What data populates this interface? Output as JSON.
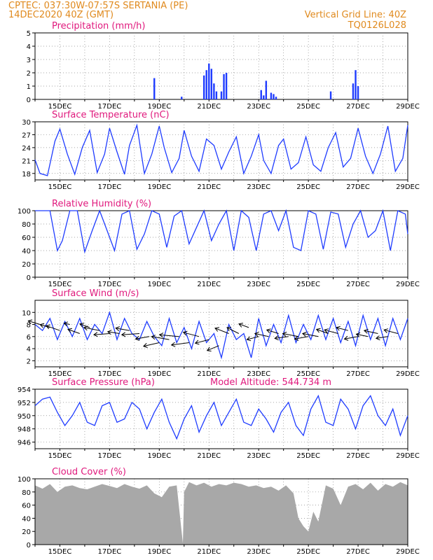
{
  "header": {
    "left_line1": "CPTEC:   037:30W-07:57S   SERTANIA (PE)",
    "left_line2": "14DEC2020 40Z (GMT)",
    "right_line1": "Vertical Grid Line: 40Z",
    "right_line2": "TQ0126L028"
  },
  "colors": {
    "header": "#e08a1e",
    "title": "#e0197d",
    "series": "#1f3cff",
    "cloud": "#a8a8a8",
    "grid": "#888888"
  },
  "x_tick_labels": [
    "15DEC",
    "17DEC",
    "19DEC",
    "21DEC",
    "23DEC",
    "25DEC",
    "27DEC",
    "29DEC"
  ],
  "chart_data": [
    {
      "type": "bar",
      "title": "Precipitation (mm/h)",
      "ylim": [
        0,
        5
      ],
      "yticks": [
        "0",
        "1",
        "2",
        "3",
        "4",
        "5"
      ],
      "x": [
        18.8,
        19.9,
        20.8,
        20.9,
        21.0,
        21.1,
        21.2,
        21.3,
        21.5,
        21.6,
        21.7,
        23.1,
        23.2,
        23.3,
        23.5,
        23.6,
        23.7,
        25.9,
        26.8,
        26.9,
        27.0
      ],
      "values": [
        1.6,
        0.2,
        1.8,
        2.2,
        2.7,
        2.3,
        1.2,
        0.6,
        0.6,
        1.9,
        2.0,
        0.7,
        0.3,
        1.4,
        0.5,
        0.4,
        0.2,
        0.6,
        1.2,
        2.2,
        1.0
      ]
    },
    {
      "type": "line",
      "title": "Surface Temperature (nC)",
      "ylim": [
        16.5,
        30
      ],
      "yticks": [
        "18",
        "21",
        "24",
        "27",
        "30"
      ],
      "x": [
        14.0,
        14.2,
        14.5,
        14.8,
        15.0,
        15.3,
        15.6,
        15.9,
        16.2,
        16.5,
        16.8,
        17.0,
        17.3,
        17.6,
        17.8,
        18.1,
        18.4,
        18.7,
        19.0,
        19.2,
        19.5,
        19.8,
        20.0,
        20.3,
        20.6,
        20.9,
        21.2,
        21.5,
        21.8,
        22.1,
        22.4,
        22.7,
        23.0,
        23.2,
        23.5,
        23.8,
        24.0,
        24.3,
        24.6,
        24.9,
        25.2,
        25.5,
        25.8,
        26.1,
        26.4,
        26.7,
        27.0,
        27.3,
        27.6,
        27.9,
        28.2,
        28.5,
        28.8,
        29.0
      ],
      "values": [
        21.2,
        18.0,
        17.5,
        25.5,
        28.3,
        22.5,
        17.8,
        24.0,
        28.0,
        18.2,
        22.5,
        28.5,
        23.0,
        17.8,
        24.5,
        29.2,
        18.0,
        22.5,
        29.0,
        24.0,
        18.2,
        21.5,
        28.0,
        22.0,
        18.5,
        26.0,
        24.5,
        19.0,
        23.0,
        26.5,
        18.0,
        22.0,
        27.0,
        21.0,
        18.0,
        24.5,
        26.0,
        19.0,
        20.5,
        26.5,
        20.0,
        18.5,
        24.0,
        27.5,
        19.5,
        21.5,
        28.5,
        22.0,
        18.0,
        22.5,
        29.0,
        18.5,
        21.5,
        29.2
      ]
    },
    {
      "type": "line",
      "title": "Relative Humidity (%)",
      "ylim": [
        0,
        100
      ],
      "yticks": [
        "0",
        "20",
        "40",
        "60",
        "80",
        "100"
      ],
      "x": [
        14.0,
        14.3,
        14.6,
        14.9,
        15.1,
        15.4,
        15.7,
        16.0,
        16.3,
        16.6,
        16.9,
        17.2,
        17.5,
        17.8,
        18.1,
        18.4,
        18.7,
        19.0,
        19.3,
        19.6,
        19.9,
        20.2,
        20.5,
        20.8,
        21.1,
        21.4,
        21.7,
        22.0,
        22.3,
        22.6,
        22.9,
        23.2,
        23.5,
        23.8,
        24.1,
        24.4,
        24.7,
        25.0,
        25.3,
        25.6,
        25.9,
        26.2,
        26.5,
        26.8,
        27.1,
        27.4,
        27.7,
        28.0,
        28.3,
        28.6,
        28.9,
        29.0
      ],
      "values": [
        100,
        100,
        100,
        40,
        55,
        100,
        100,
        38,
        70,
        100,
        70,
        40,
        95,
        100,
        42,
        65,
        100,
        95,
        45,
        92,
        100,
        50,
        75,
        100,
        55,
        80,
        100,
        40,
        100,
        90,
        40,
        95,
        100,
        70,
        100,
        45,
        40,
        100,
        95,
        42,
        98,
        95,
        45,
        80,
        100,
        60,
        70,
        100,
        40,
        100,
        95,
        65
      ]
    },
    {
      "type": "line",
      "title": "Surface Wind (m/s)",
      "ylim": [
        1,
        12
      ],
      "yticks": [
        "2",
        "4",
        "6",
        "8",
        "10"
      ],
      "x": [
        14.0,
        14.3,
        14.6,
        14.9,
        15.2,
        15.5,
        15.8,
        16.1,
        16.4,
        16.7,
        17.0,
        17.3,
        17.6,
        17.9,
        18.2,
        18.5,
        18.8,
        19.1,
        19.4,
        19.7,
        20.0,
        20.3,
        20.6,
        20.9,
        21.2,
        21.5,
        21.8,
        22.1,
        22.4,
        22.7,
        23.0,
        23.3,
        23.6,
        23.9,
        24.2,
        24.5,
        24.8,
        25.1,
        25.4,
        25.7,
        26.0,
        26.3,
        26.6,
        26.9,
        27.2,
        27.5,
        27.8,
        28.1,
        28.4,
        28.7,
        29.0
      ],
      "values": [
        8.0,
        7.0,
        9.0,
        5.5,
        8.5,
        6.0,
        9.0,
        5.5,
        8.0,
        6.5,
        10.0,
        5.5,
        9.0,
        6.5,
        5.5,
        8.5,
        6.0,
        4.5,
        9.0,
        5.0,
        7.5,
        4.0,
        8.5,
        5.0,
        6.5,
        2.5,
        8.0,
        5.5,
        6.5,
        2.5,
        9.0,
        4.5,
        8.0,
        5.0,
        9.5,
        5.0,
        8.0,
        5.5,
        9.5,
        5.5,
        9.0,
        5.0,
        8.5,
        4.5,
        9.5,
        5.5,
        9.0,
        4.5,
        9.0,
        5.5,
        9.0
      ],
      "vectors_x": [
        14.2,
        14.6,
        15.0,
        15.4,
        15.8,
        16.2,
        16.6,
        17.0,
        17.4,
        17.8,
        18.2,
        18.6,
        19.0,
        19.4,
        19.8,
        20.2,
        20.6,
        21.0,
        21.4,
        21.8,
        22.2,
        22.6,
        23.0,
        23.4,
        23.8,
        24.2,
        24.6,
        25.0,
        25.4,
        25.8,
        26.2,
        26.6,
        27.0,
        27.4,
        27.8,
        28.2,
        28.6
      ],
      "vectors_y": [
        8.0,
        7.5,
        7.0,
        8.0,
        6.5,
        7.5,
        7.0,
        6.5,
        6.5,
        7.0,
        6.5,
        6.0,
        5.0,
        5.5,
        6.0,
        5.0,
        6.0,
        5.5,
        4.5,
        6.5,
        6.5,
        7.5,
        6.0,
        6.0,
        6.5,
        6.0,
        6.0,
        6.0,
        6.0,
        6.5,
        6.5,
        7.0,
        6.0,
        6.0,
        6.5,
        6.0,
        6.5
      ],
      "vectors_dx": [
        -0.6,
        -0.5,
        -0.7,
        -0.3,
        -0.6,
        -0.5,
        -0.8,
        -0.8,
        -0.6,
        -0.7,
        -0.9,
        -0.7,
        -0.8,
        -0.9,
        -1.0,
        -0.9,
        -0.8,
        -0.7,
        -0.6,
        -0.7,
        -0.6,
        -0.5,
        -0.6,
        -0.7,
        -0.6,
        -0.7,
        -0.8,
        -0.7,
        -0.8,
        -0.6,
        -0.7,
        -0.6,
        -0.7,
        -0.6,
        -0.7,
        -0.6,
        -0.7
      ],
      "vectors_dy": [
        0.6,
        0.5,
        0.8,
        0.2,
        0.7,
        0.6,
        0.5,
        -0.2,
        0.3,
        0.4,
        -0.2,
        -0.4,
        -0.6,
        0.5,
        0.3,
        -0.4,
        0.7,
        -0.6,
        -0.8,
        0.9,
        1.0,
        0.6,
        -0.5,
        0.5,
        0.6,
        -0.3,
        0.5,
        -0.4,
        0.5,
        0.7,
        0.6,
        0.5,
        -0.4,
        0.4,
        0.5,
        -0.3,
        0.6
      ]
    },
    {
      "type": "line",
      "title": "Surface Pressure (hPa)",
      "annotation": "Model Altitude: 544.734  m",
      "ylim": [
        945,
        954
      ],
      "yticks": [
        "946",
        "948",
        "950",
        "952",
        "954"
      ],
      "x": [
        14.0,
        14.3,
        14.6,
        14.9,
        15.2,
        15.5,
        15.8,
        16.1,
        16.4,
        16.7,
        17.0,
        17.3,
        17.6,
        17.9,
        18.2,
        18.5,
        18.8,
        19.1,
        19.4,
        19.7,
        20.0,
        20.3,
        20.6,
        20.9,
        21.2,
        21.5,
        21.8,
        22.1,
        22.4,
        22.7,
        23.0,
        23.3,
        23.6,
        23.9,
        24.2,
        24.5,
        24.8,
        25.1,
        25.4,
        25.7,
        26.0,
        26.3,
        26.6,
        26.9,
        27.2,
        27.5,
        27.8,
        28.1,
        28.4,
        28.7,
        29.0
      ],
      "values": [
        951.5,
        952.5,
        952.8,
        950.5,
        948.5,
        950.0,
        952.0,
        949.0,
        948.5,
        951.5,
        952.0,
        949.0,
        949.5,
        952.0,
        951.0,
        948.0,
        950.5,
        952.5,
        949.0,
        946.5,
        949.5,
        951.5,
        947.5,
        950.0,
        952.0,
        948.5,
        950.5,
        952.5,
        949.0,
        948.5,
        951.0,
        949.5,
        947.5,
        950.5,
        952.0,
        948.5,
        947.0,
        951.0,
        953.0,
        949.0,
        948.5,
        952.5,
        951.0,
        948.0,
        951.5,
        953.0,
        950.0,
        948.5,
        951.0,
        947.0,
        950.0
      ]
    },
    {
      "type": "area",
      "title": "Cloud Cover (%)",
      "ylim": [
        0,
        100
      ],
      "yticks": [
        "0",
        "20",
        "40",
        "60",
        "80",
        "100"
      ],
      "x": [
        14.0,
        14.3,
        14.6,
        14.9,
        15.2,
        15.5,
        15.8,
        16.1,
        16.4,
        16.7,
        17.0,
        17.3,
        17.6,
        17.9,
        18.2,
        18.5,
        18.8,
        19.1,
        19.4,
        19.7,
        19.95,
        20.0,
        20.2,
        20.5,
        20.8,
        21.1,
        21.4,
        21.7,
        22.0,
        22.3,
        22.6,
        22.9,
        23.2,
        23.5,
        23.8,
        24.1,
        24.4,
        24.6,
        24.8,
        25.0,
        25.2,
        25.4,
        25.7,
        26.0,
        26.3,
        26.6,
        26.9,
        27.2,
        27.5,
        27.8,
        28.1,
        28.4,
        28.7,
        29.0
      ],
      "values": [
        90,
        85,
        92,
        80,
        88,
        90,
        86,
        84,
        88,
        92,
        89,
        86,
        92,
        88,
        85,
        90,
        78,
        72,
        88,
        90,
        2,
        80,
        95,
        90,
        94,
        88,
        92,
        90,
        94,
        92,
        88,
        90,
        86,
        88,
        82,
        90,
        78,
        40,
        28,
        20,
        50,
        35,
        90,
        85,
        60,
        88,
        92,
        84,
        94,
        82,
        92,
        88,
        95,
        90
      ]
    }
  ]
}
